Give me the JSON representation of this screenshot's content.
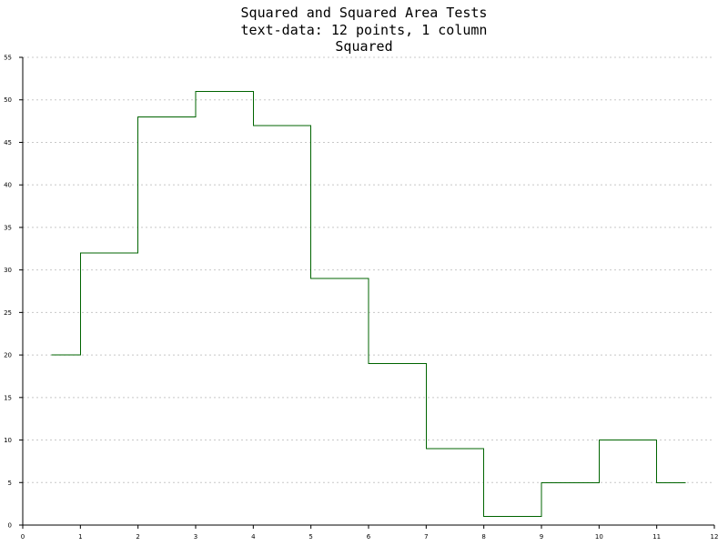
{
  "chart_data": {
    "type": "line",
    "style": "step",
    "title_lines": [
      "Squared and Squared Area Tests",
      "text-data: 12 points, 1 column",
      "Squared"
    ],
    "x": [
      0.5,
      1.5,
      2.5,
      3.5,
      4.5,
      5.5,
      6.5,
      7.5,
      8.5,
      9.5,
      10.5,
      11.5
    ],
    "series": [
      {
        "values": [
          20,
          32,
          48,
          51,
          47,
          29,
          19,
          9,
          1,
          5,
          10,
          5
        ],
        "color": "#006400"
      }
    ],
    "xlim": [
      0,
      12
    ],
    "ylim": [
      0,
      55
    ],
    "x_ticks": [
      0,
      1,
      2,
      3,
      4,
      5,
      6,
      7,
      8,
      9,
      10,
      11,
      12
    ],
    "y_ticks": [
      0,
      5,
      10,
      15,
      20,
      25,
      30,
      35,
      40,
      45,
      50,
      55
    ],
    "grid": "horizontal-dashed",
    "xlabel": "",
    "ylabel": ""
  }
}
